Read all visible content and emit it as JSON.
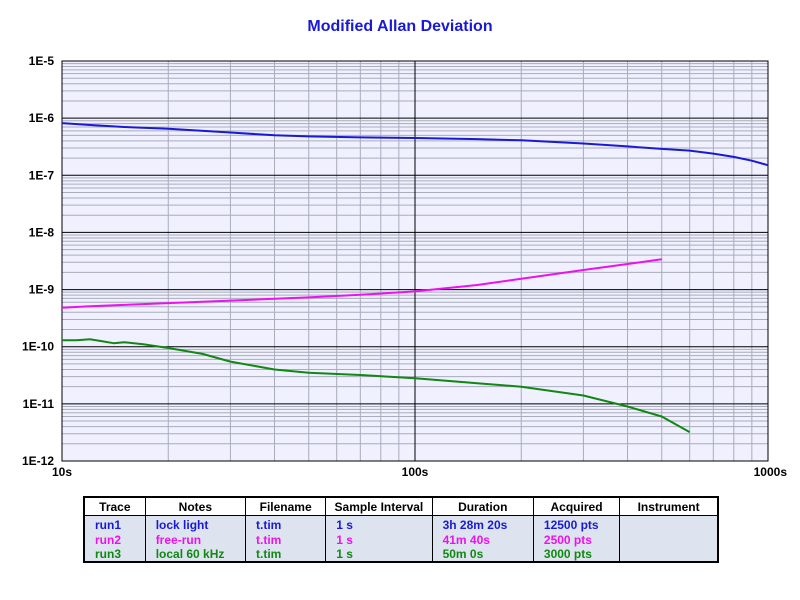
{
  "chart_data": {
    "type": "line",
    "title": "Modified Allan Deviation",
    "xscale": "log",
    "yscale": "log",
    "xlim": [
      10,
      1000
    ],
    "ylim": [
      1e-12,
      1e-05
    ],
    "x_tick_labels": [
      "10s",
      "100s",
      "1000s"
    ],
    "y_tick_labels": [
      "1E-12",
      "1E-11",
      "1E-10",
      "1E-9",
      "1E-8",
      "1E-7",
      "1E-6",
      "1E-5"
    ],
    "grid": true,
    "plot_background": "#f0f0ff",
    "series": [
      {
        "name": "run1",
        "color": "#1a1ad6",
        "x": [
          10,
          12,
          15,
          20,
          30,
          40,
          50,
          70,
          100,
          150,
          200,
          300,
          400,
          500,
          600,
          700,
          800,
          900,
          1000
        ],
        "y": [
          8.2e-07,
          7.6e-07,
          7e-07,
          6.5e-07,
          5.6e-07,
          5e-07,
          4.8e-07,
          4.6e-07,
          4.5e-07,
          4.3e-07,
          4.1e-07,
          3.6e-07,
          3.2e-07,
          2.9e-07,
          2.7e-07,
          2.4e-07,
          2.1e-07,
          1.8e-07,
          1.5e-07
        ]
      },
      {
        "name": "run2",
        "color": "#ee11ee",
        "x": [
          10,
          12,
          15,
          20,
          30,
          40,
          50,
          70,
          100,
          150,
          200,
          300,
          400,
          500
        ],
        "y": [
          4.8e-10,
          5.1e-10,
          5.4e-10,
          5.8e-10,
          6.4e-10,
          6.9e-10,
          7.3e-10,
          8.1e-10,
          9.3e-10,
          1.2e-09,
          1.55e-09,
          2.2e-09,
          2.8e-09,
          3.4e-09
        ]
      },
      {
        "name": "run3",
        "color": "#118811",
        "x": [
          10,
          11,
          12,
          13,
          14,
          15,
          17,
          20,
          25,
          30,
          40,
          50,
          70,
          100,
          150,
          200,
          300,
          400,
          500,
          600
        ],
        "y": [
          1.3e-10,
          1.3e-10,
          1.35e-10,
          1.25e-10,
          1.15e-10,
          1.2e-10,
          1.1e-10,
          9.5e-11,
          7.5e-11,
          5.5e-11,
          4e-11,
          3.5e-11,
          3.2e-11,
          2.8e-11,
          2.3e-11,
          2e-11,
          1.4e-11,
          9e-12,
          6e-12,
          3.2e-12
        ]
      }
    ]
  },
  "legend": {
    "headers": [
      "Trace",
      "Notes",
      "Filename",
      "Sample Interval",
      "Duration",
      "Acquired",
      "Instrument"
    ],
    "rows": [
      {
        "color": "#1a1ad6",
        "cells": [
          "run1",
          "lock light",
          "t.tim",
          "1 s",
          "3h 28m 20s",
          "12500 pts",
          ""
        ]
      },
      {
        "color": "#ee11ee",
        "cells": [
          "run2",
          "free-run",
          "t.tim",
          "1 s",
          "41m 40s",
          "2500 pts",
          ""
        ]
      },
      {
        "color": "#118811",
        "cells": [
          "run3",
          "local 60 kHz",
          "t.tim",
          "1 s",
          "50m 0s",
          "3000 pts",
          ""
        ]
      }
    ]
  }
}
